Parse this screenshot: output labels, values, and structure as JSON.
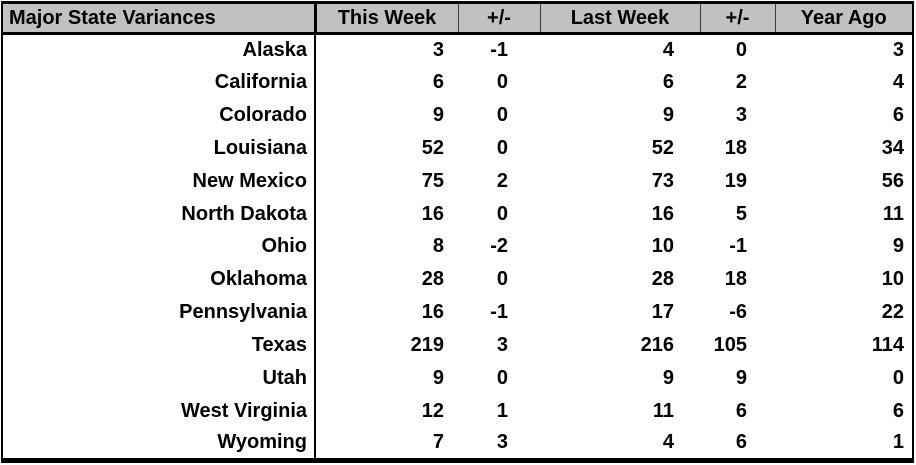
{
  "table": {
    "title": "Major State Variances",
    "columns": [
      "This Week",
      "+/-",
      "Last Week",
      "+/-",
      "Year Ago"
    ],
    "colors": {
      "header_background": "#c1c1c1",
      "border": "#000000",
      "text": "#000000"
    },
    "rows": [
      {
        "state": "Alaska",
        "values": [
          "3",
          "-1",
          "4",
          "0",
          "3"
        ]
      },
      {
        "state": "California",
        "values": [
          "6",
          "0",
          "6",
          "2",
          "4"
        ]
      },
      {
        "state": "Colorado",
        "values": [
          "9",
          "0",
          "9",
          "3",
          "6"
        ]
      },
      {
        "state": "Louisiana",
        "values": [
          "52",
          "0",
          "52",
          "18",
          "34"
        ]
      },
      {
        "state": "New Mexico",
        "values": [
          "75",
          "2",
          "73",
          "19",
          "56"
        ]
      },
      {
        "state": "North Dakota",
        "values": [
          "16",
          "0",
          "16",
          "5",
          "11"
        ]
      },
      {
        "state": "Ohio",
        "values": [
          "8",
          "-2",
          "10",
          "-1",
          "9"
        ]
      },
      {
        "state": "Oklahoma",
        "values": [
          "28",
          "0",
          "28",
          "18",
          "10"
        ]
      },
      {
        "state": "Pennsylvania",
        "values": [
          "16",
          "-1",
          "17",
          "-6",
          "22"
        ]
      },
      {
        "state": "Texas",
        "values": [
          "219",
          "3",
          "216",
          "105",
          "114"
        ]
      },
      {
        "state": "Utah",
        "values": [
          "9",
          "0",
          "9",
          "9",
          "0"
        ]
      },
      {
        "state": "West Virginia",
        "values": [
          "12",
          "1",
          "11",
          "6",
          "6"
        ]
      },
      {
        "state": "Wyoming",
        "values": [
          "7",
          "3",
          "4",
          "6",
          "1"
        ]
      }
    ]
  }
}
